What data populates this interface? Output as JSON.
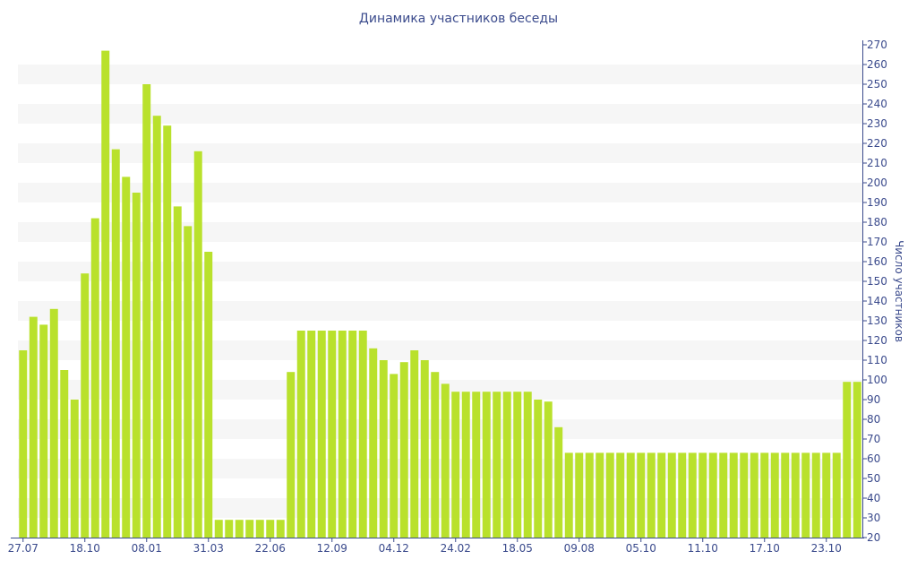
{
  "chart_data": {
    "type": "bar",
    "title": "Динамика участников беседы",
    "ylabel": "Число участников",
    "xlabel": "",
    "ylim": [
      20,
      270
    ],
    "yticks": [
      20,
      30,
      40,
      50,
      60,
      70,
      80,
      90,
      100,
      110,
      120,
      130,
      140,
      150,
      160,
      170,
      180,
      190,
      200,
      210,
      220,
      230,
      240,
      250,
      260,
      270
    ],
    "y_axis_side": "right",
    "grid": "alternating horizontal bands",
    "bar_color": "#b9e12c",
    "band_color": "#f6f6f6",
    "axis_color": "#3a4a8c",
    "x_tick_labels": [
      {
        "index": 0,
        "label": "27.07"
      },
      {
        "index": 6,
        "label": "18.10"
      },
      {
        "index": 12,
        "label": "08.01"
      },
      {
        "index": 18,
        "label": "31.03"
      },
      {
        "index": 24,
        "label": "22.06"
      },
      {
        "index": 30,
        "label": "12.09"
      },
      {
        "index": 36,
        "label": "04.12"
      },
      {
        "index": 42,
        "label": "24.02"
      },
      {
        "index": 48,
        "label": "18.05"
      },
      {
        "index": 54,
        "label": "09.08"
      },
      {
        "index": 60,
        "label": "05.10"
      },
      {
        "index": 66,
        "label": "11.10"
      },
      {
        "index": 72,
        "label": "17.10"
      },
      {
        "index": 78,
        "label": "23.10"
      }
    ],
    "values": [
      115,
      132,
      128,
      136,
      105,
      90,
      154,
      182,
      267,
      217,
      203,
      195,
      250,
      234,
      229,
      188,
      178,
      216,
      165,
      29,
      29,
      29,
      29,
      29,
      29,
      29,
      104,
      125,
      125,
      125,
      125,
      125,
      125,
      125,
      116,
      110,
      103,
      109,
      115,
      110,
      104,
      98,
      94,
      94,
      94,
      94,
      94,
      94,
      94,
      94,
      90,
      89,
      76,
      63,
      63,
      63,
      63,
      63,
      63,
      63,
      63,
      63,
      63,
      63,
      63,
      63,
      63,
      63,
      63,
      63,
      63,
      63,
      63,
      63,
      63,
      63,
      63,
      63,
      63,
      63,
      99,
      99
    ]
  }
}
